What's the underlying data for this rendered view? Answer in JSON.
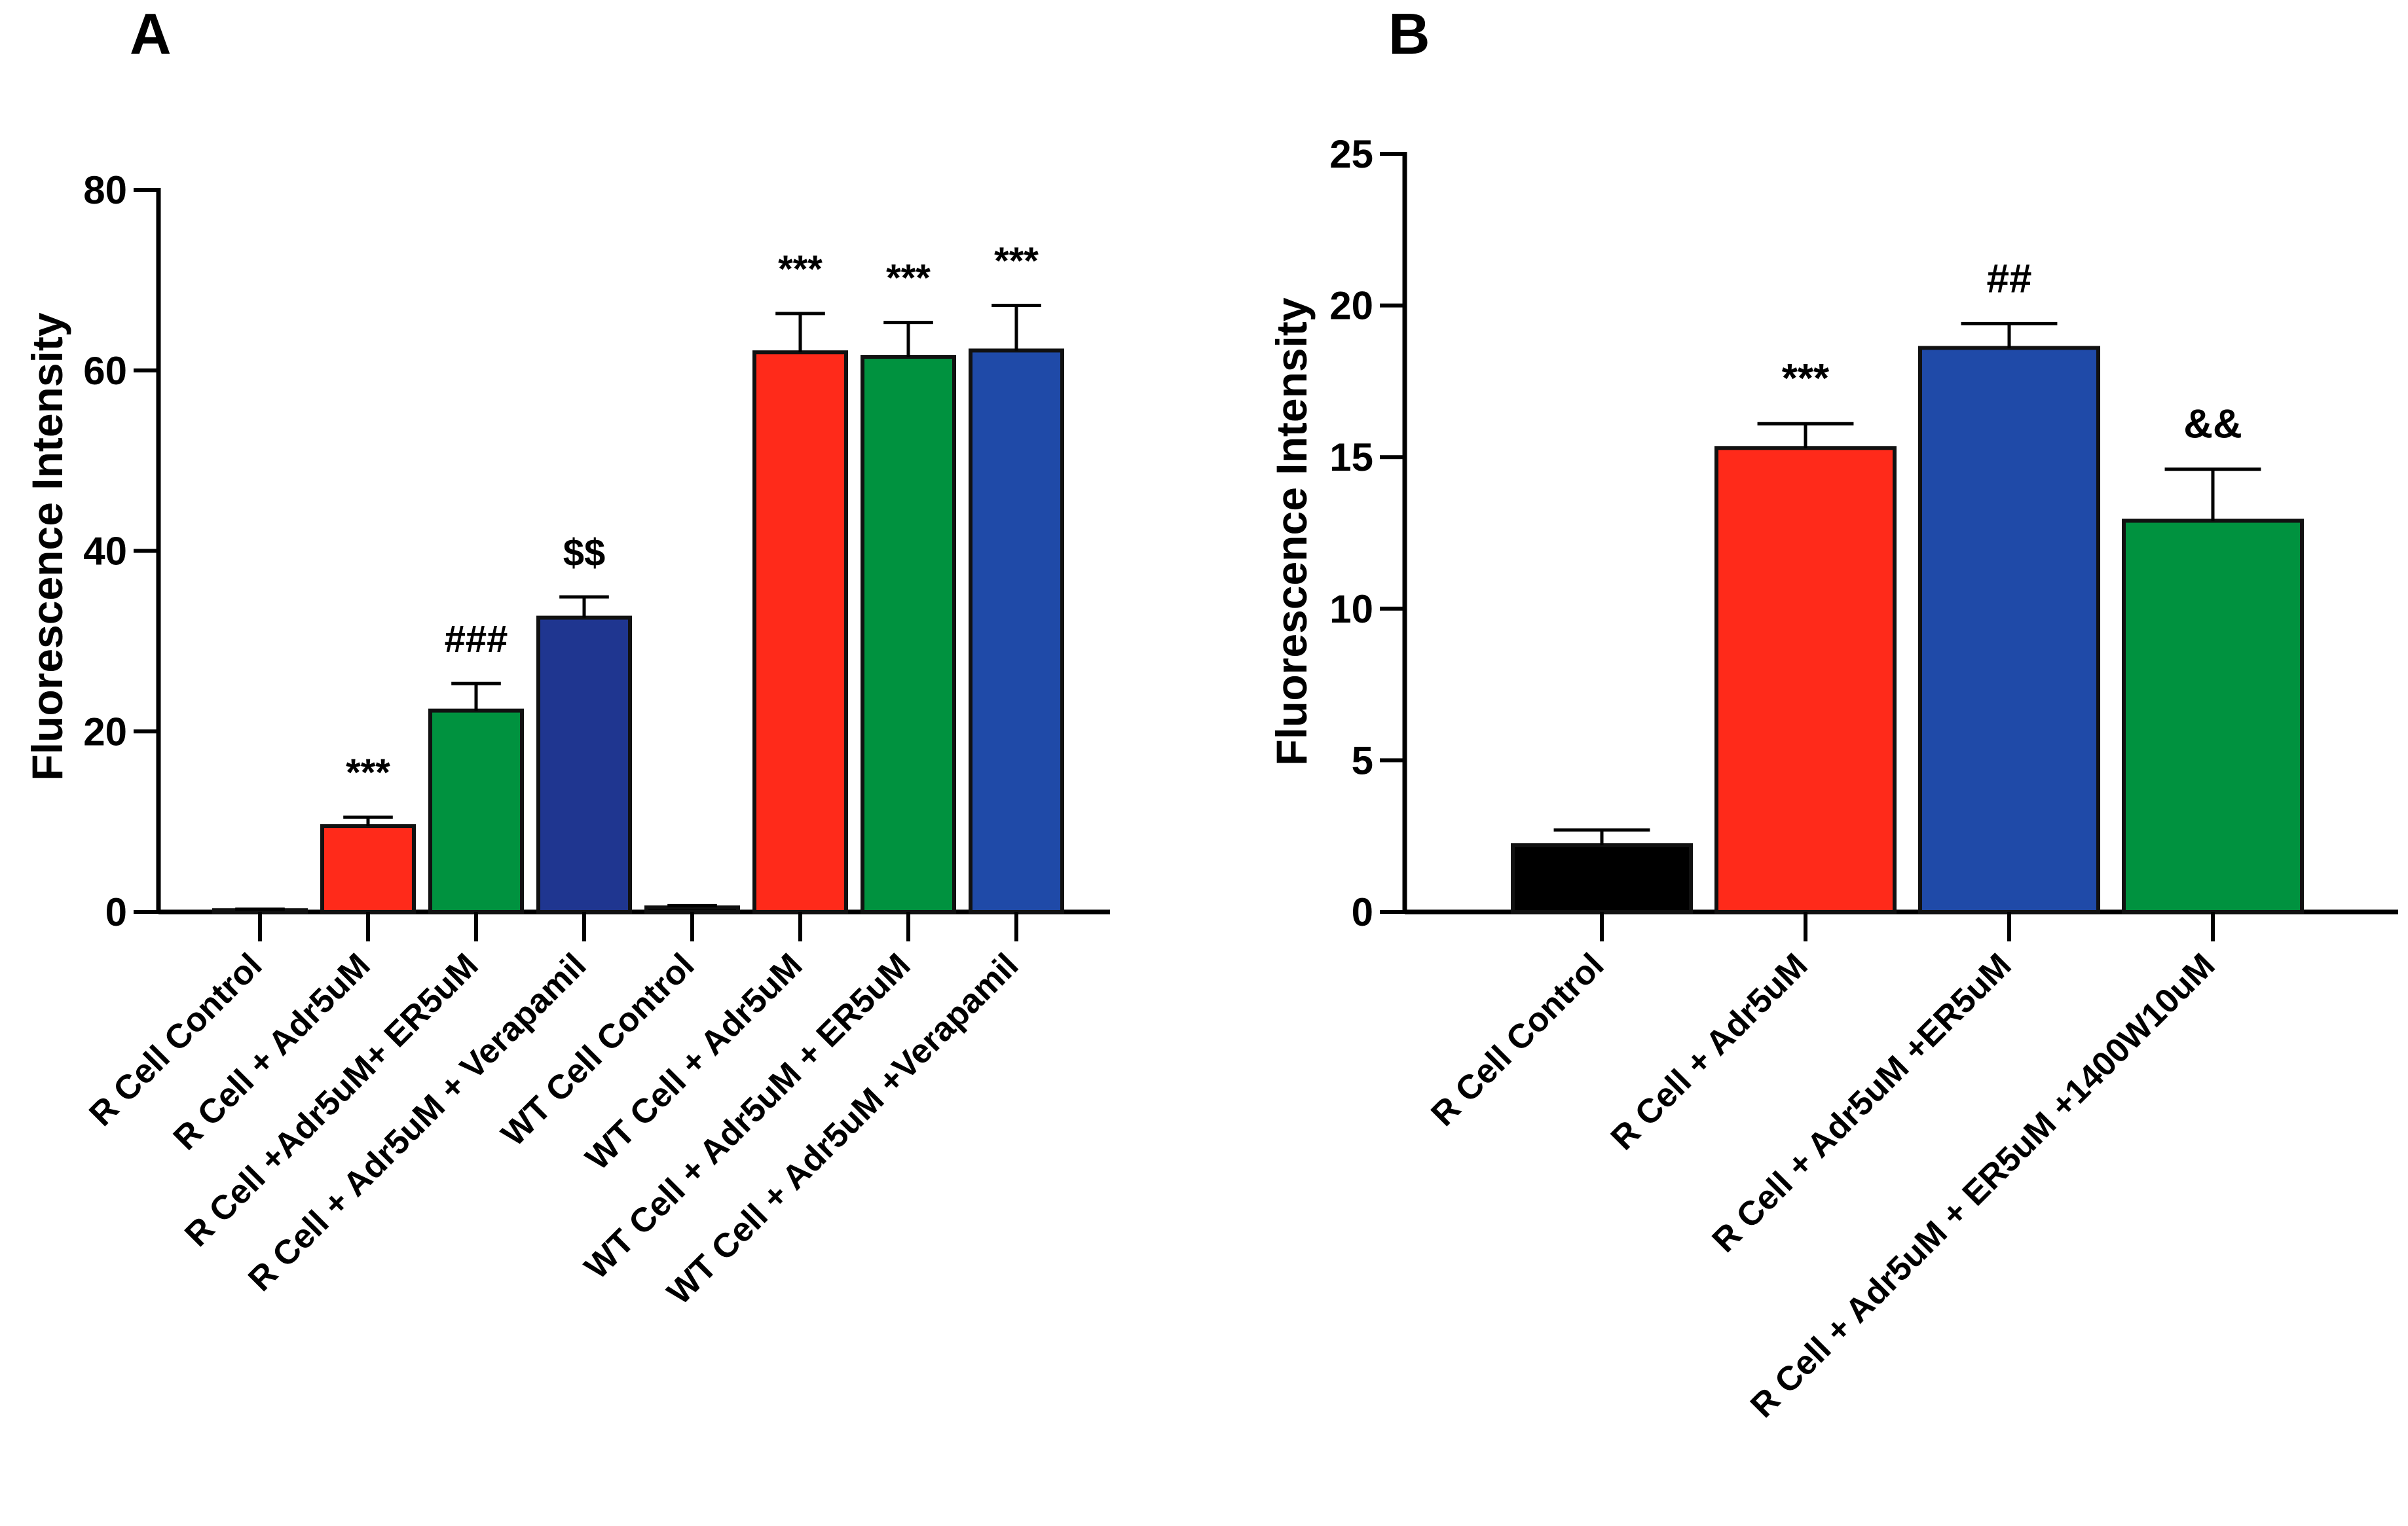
{
  "chart_data": [
    {
      "type": "bar",
      "panel": "A",
      "title": "",
      "xlabel": "",
      "ylabel": "Fluorescence Intensity",
      "ylim": [
        0,
        80
      ],
      "yticks": [
        0,
        20,
        40,
        60,
        80
      ],
      "categories": [
        "R Cell Control",
        "R Cell + Adr5uM",
        "R Cell +Adr5uM+ ER5uM",
        "R Cell + Adr5uM + Verapamil",
        "WT Cell Control",
        "WT Cell + Adr5uM",
        "WT Cell + Adr5uM + ER5uM",
        "WT Cell + Adr5uM +Verapamil"
      ],
      "values": [
        0.2,
        9.5,
        22.3,
        32.6,
        0.5,
        62.0,
        61.5,
        62.2
      ],
      "errors": [
        0.1,
        1.0,
        3.0,
        2.3,
        0.2,
        4.3,
        3.8,
        5.0
      ],
      "colors": [
        "#000000",
        "#ff2a1a",
        "#00923f",
        "#1f3690",
        "#000000",
        "#ff2a1a",
        "#00923f",
        "#1f4aa8"
      ],
      "annotations": [
        "",
        "***",
        "###",
        "$$",
        "",
        "***",
        "***",
        "***"
      ],
      "grid": false,
      "legend": "none"
    },
    {
      "type": "bar",
      "panel": "B",
      "title": "",
      "xlabel": "",
      "ylabel": "Fluorescence Intensity",
      "ylim": [
        0,
        25
      ],
      "yticks": [
        0,
        5,
        10,
        15,
        20,
        25
      ],
      "categories": [
        "R Cell Control",
        "R Cell + Adr5uM",
        "R Cell + Adr5uM +ER5uM",
        "R Cell + Adr5uM + ER5uM +1400W10uM"
      ],
      "values": [
        2.2,
        15.3,
        18.6,
        12.9
      ],
      "errors": [
        0.5,
        0.8,
        0.8,
        1.7
      ],
      "colors": [
        "#000000",
        "#ff2a1a",
        "#1f4aa8",
        "#00923f"
      ],
      "annotations": [
        "",
        "***",
        "##",
        "&&"
      ],
      "grid": false,
      "legend": "none"
    }
  ]
}
